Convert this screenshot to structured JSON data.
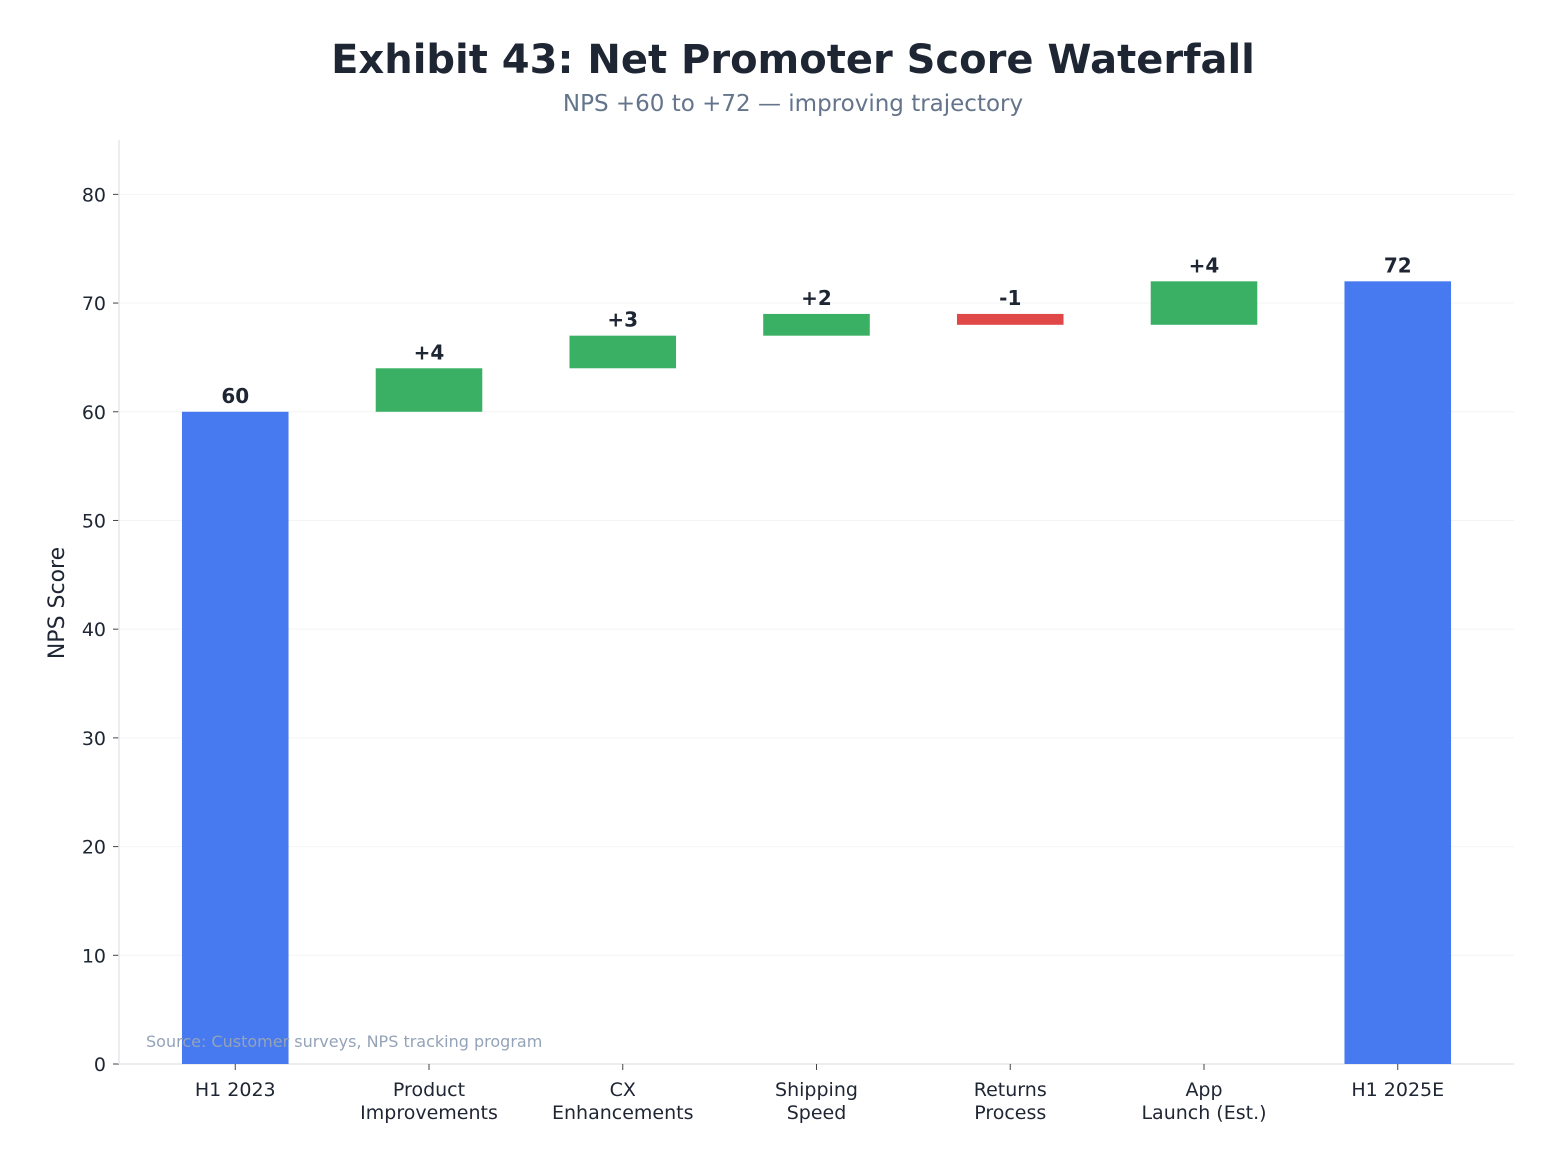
{
  "chart_data": {
    "type": "waterfall",
    "title": "Exhibit 43: Net Promoter Score Waterfall",
    "subtitle": "NPS +60 to +72 — improving trajectory",
    "xlabel": "",
    "ylabel": "NPS Score",
    "ylim": [
      0,
      85
    ],
    "yticks": [
      0,
      10,
      20,
      30,
      40,
      50,
      60,
      70,
      80
    ],
    "grid": true,
    "categories": [
      [
        "H1 2023"
      ],
      [
        "Product",
        "Improvements"
      ],
      [
        "CX",
        "Enhancements"
      ],
      [
        "Shipping",
        "Speed"
      ],
      [
        "Returns",
        "Process"
      ],
      [
        "App",
        "Launch (Est.)"
      ],
      [
        "H1 2025E"
      ]
    ],
    "bars": [
      {
        "kind": "total",
        "start": 0,
        "end": 60,
        "label": "60"
      },
      {
        "kind": "increase",
        "start": 60,
        "end": 64,
        "label": "+4"
      },
      {
        "kind": "increase",
        "start": 64,
        "end": 67,
        "label": "+3"
      },
      {
        "kind": "increase",
        "start": 67,
        "end": 69,
        "label": "+2"
      },
      {
        "kind": "decrease",
        "start": 69,
        "end": 68,
        "label": "-1"
      },
      {
        "kind": "increase",
        "start": 68,
        "end": 72,
        "label": "+4"
      },
      {
        "kind": "total",
        "start": 0,
        "end": 72,
        "label": "72"
      }
    ],
    "colors": {
      "total": "#4779f0",
      "increase": "#3ab065",
      "decrease": "#e04848"
    },
    "source": "Source: Customer surveys, NPS tracking program"
  }
}
